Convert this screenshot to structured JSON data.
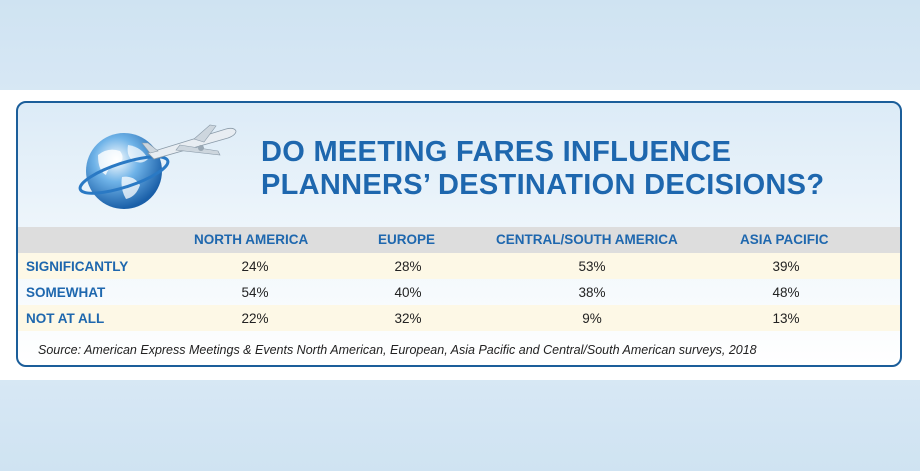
{
  "title_line1": "DO MEETING FARES INFLUENCE",
  "title_line2": "PLANNERS’ DESTINATION DECISIONS?",
  "source": "Source: American Express Meetings & Events North American, European, Asia Pacific and Central/South American surveys, 2018",
  "colors": {
    "title": "#1e67ae",
    "border": "#1b5e9a",
    "header_bar": "#dddddd",
    "row_shade": "#fdf8e6"
  },
  "icons": [
    "globe-icon",
    "airplane-icon"
  ],
  "chart_data": {
    "type": "table",
    "columns": [
      "NORTH AMERICA",
      "EUROPE",
      "CENTRAL/SOUTH AMERICA",
      "ASIA PACIFIC"
    ],
    "rows": [
      {
        "label": "SIGNIFICANTLY",
        "values": [
          "24%",
          "28%",
          "53%",
          "39%"
        ]
      },
      {
        "label": "SOMEWHAT",
        "values": [
          "54%",
          "40%",
          "38%",
          "48%"
        ]
      },
      {
        "label": "NOT AT ALL",
        "values": [
          "22%",
          "32%",
          "9%",
          "13%"
        ]
      }
    ]
  }
}
